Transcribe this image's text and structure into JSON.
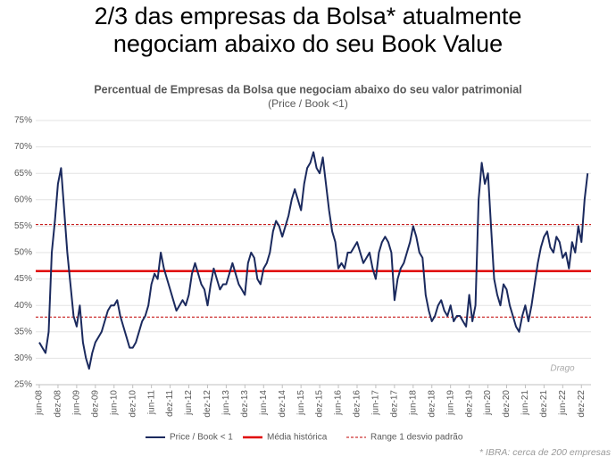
{
  "heading": [
    "2/3 das empresas da Bolsa* atualmente",
    "negociam abaixo do seu Book Value"
  ],
  "footnote": "* IBRA: cerca de 200 empresas",
  "chart_data": {
    "type": "line",
    "title": "Percentual de Empresas da Bolsa que negociam abaixo do seu valor patrimonial",
    "subtitle": "(Price / Book <1)",
    "watermark": "Drago",
    "categories": [
      "jun-08",
      null,
      null,
      null,
      null,
      null,
      "dez-08",
      null,
      null,
      null,
      null,
      null,
      "jun-09",
      null,
      null,
      null,
      null,
      null,
      "dez-09",
      null,
      null,
      null,
      null,
      null,
      "jun-10",
      null,
      null,
      null,
      null,
      null,
      "dez-10",
      null,
      null,
      null,
      null,
      null,
      "jun-11",
      null,
      null,
      null,
      null,
      null,
      "dez-11",
      null,
      null,
      null,
      null,
      null,
      "jun-12",
      null,
      null,
      null,
      null,
      null,
      "dez-12",
      null,
      null,
      null,
      null,
      null,
      "jun-13",
      null,
      null,
      null,
      null,
      null,
      "dez-13",
      null,
      null,
      null,
      null,
      null,
      "jun-14",
      null,
      null,
      null,
      null,
      null,
      "dez-14",
      null,
      null,
      null,
      null,
      null,
      "jun-15",
      null,
      null,
      null,
      null,
      null,
      "dez-15",
      null,
      null,
      null,
      null,
      null,
      "jun-16",
      null,
      null,
      null,
      null,
      null,
      "dez-16",
      null,
      null,
      null,
      null,
      null,
      "jun-17",
      null,
      null,
      null,
      null,
      null,
      "dez-17",
      null,
      null,
      null,
      null,
      null,
      "jun-18",
      null,
      null,
      null,
      null,
      null,
      "dez-18",
      null,
      null,
      null,
      null,
      null,
      "jun-19",
      null,
      null,
      null,
      null,
      null,
      "dez-19",
      null,
      null,
      null,
      null,
      null,
      "jun-20",
      null,
      null,
      null,
      null,
      null,
      "dez-20",
      null,
      null,
      null,
      null,
      null,
      "jun-21",
      null,
      null,
      null,
      null,
      null,
      "dez-21",
      null,
      null,
      null,
      null,
      null,
      "jun-22",
      null,
      null,
      null,
      null,
      null,
      "dez-22",
      null,
      null
    ],
    "series": [
      {
        "name": "Price / Book < 1",
        "color": "#1b2a5e",
        "values": [
          33,
          32,
          31,
          35,
          50,
          56,
          63,
          66,
          58,
          50,
          44,
          38,
          36,
          40,
          33,
          30,
          28,
          31,
          33,
          34,
          35,
          37,
          39,
          40,
          40,
          41,
          38,
          36,
          34,
          32,
          32,
          33,
          35,
          37,
          38,
          40,
          44,
          46,
          45,
          50,
          47,
          45,
          43,
          41,
          39,
          40,
          41,
          40,
          42,
          46,
          48,
          46,
          44,
          43,
          40,
          44,
          47,
          45,
          43,
          44,
          44,
          46,
          48,
          46,
          44,
          43,
          42,
          48,
          50,
          49,
          45,
          44,
          47,
          48,
          50,
          54,
          56,
          55,
          53,
          55,
          57,
          60,
          62,
          60,
          58,
          63,
          66,
          67,
          69,
          66,
          65,
          68,
          63,
          58,
          54,
          52,
          47,
          48,
          47,
          50,
          50,
          51,
          52,
          50,
          48,
          49,
          50,
          47,
          45,
          50,
          52,
          53,
          52,
          50,
          41,
          45,
          47,
          48,
          50,
          52,
          55,
          53,
          50,
          49,
          42,
          39,
          37,
          38,
          40,
          41,
          39,
          38,
          40,
          37,
          38,
          38,
          37,
          36,
          42,
          37,
          40,
          60,
          67,
          63,
          65,
          55,
          45,
          42,
          40,
          44,
          43,
          40,
          38,
          36,
          35,
          38,
          40,
          37,
          40,
          44,
          48,
          51,
          53,
          54,
          51,
          50,
          53,
          52,
          49,
          50,
          47,
          52,
          50,
          55,
          52,
          60,
          65
        ]
      }
    ],
    "reference_lines": [
      {
        "name": "Média histórica",
        "color": "#e00000",
        "style": "solid",
        "values": [
          46.5
        ]
      },
      {
        "name": "Range 1 desvio padrão",
        "color": "#c00000",
        "style": "dashed",
        "values": [
          55.3,
          37.8
        ]
      }
    ],
    "ylim": [
      25,
      75
    ],
    "yticks": [
      {
        "value": 25,
        "label": "25%"
      },
      {
        "value": 30,
        "label": "30%"
      },
      {
        "value": 35,
        "label": "35%"
      },
      {
        "value": 40,
        "label": "40%"
      },
      {
        "value": 45,
        "label": "45%"
      },
      {
        "value": 50,
        "label": "50%"
      },
      {
        "value": 55,
        "label": "55%"
      },
      {
        "value": 60,
        "label": "60%"
      },
      {
        "value": 65,
        "label": "65%"
      },
      {
        "value": 70,
        "label": "70%"
      },
      {
        "value": 75,
        "label": "75%"
      }
    ],
    "grid": true
  }
}
